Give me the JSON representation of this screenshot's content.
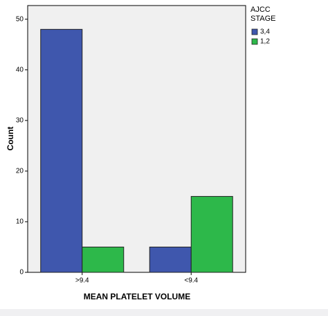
{
  "chart_data": {
    "type": "bar",
    "x_label": "MEAN PLATELET VOLUME",
    "y_label": "Count",
    "categories": [
      ">9.4",
      "<9.4"
    ],
    "series": [
      {
        "name": "3,4",
        "color": "#3f57ad",
        "values": [
          48,
          5
        ]
      },
      {
        "name": "1,2",
        "color": "#2db84a",
        "values": [
          5,
          15
        ]
      }
    ],
    "ylim": [
      0,
      52.7
    ],
    "yticks": [
      0,
      10,
      20,
      30,
      40,
      50
    ],
    "legend_title": "AJCC STAGE",
    "legend": "right"
  }
}
